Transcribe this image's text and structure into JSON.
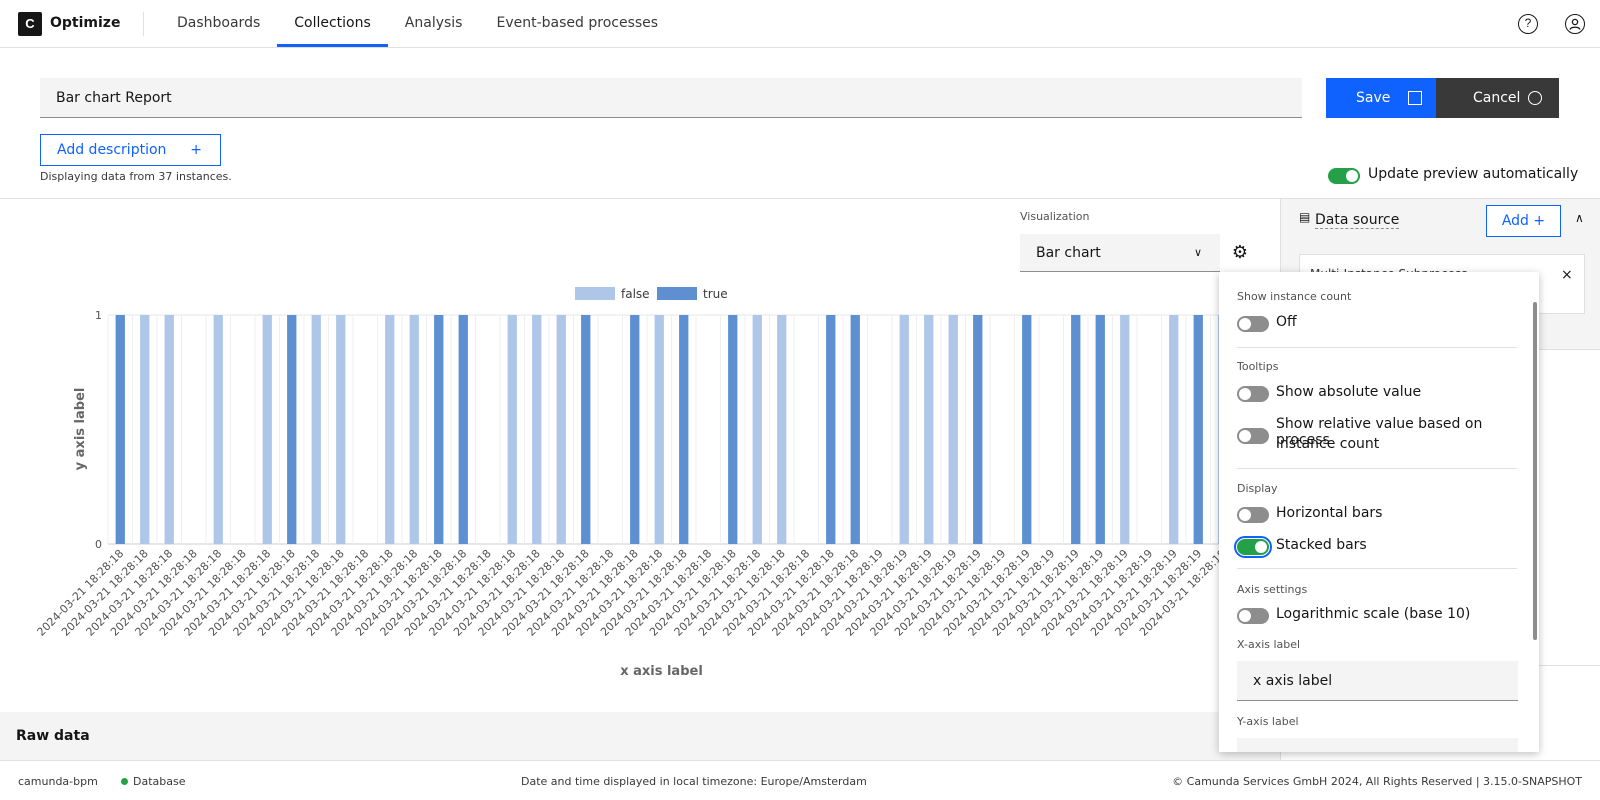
{
  "app": {
    "logo_letter": "C",
    "name": "Optimize"
  },
  "nav": {
    "tabs": [
      {
        "label": "Dashboards"
      },
      {
        "label": "Collections"
      },
      {
        "label": "Analysis"
      },
      {
        "label": "Event-based processes"
      }
    ],
    "active": "Collections",
    "help_icon": "?",
    "user_icon": "user-icon"
  },
  "report": {
    "title": "Bar chart Report",
    "save_label": "Save",
    "cancel_label": "Cancel",
    "add_description_label": "Add description",
    "add_description_plus": "+",
    "instances_text": "Displaying data from 37 instances.",
    "update_preview_label": "Update preview automatically",
    "update_preview_on": true
  },
  "visualization": {
    "label": "Visualization",
    "selected": "Bar chart",
    "chevron": "∨",
    "gear": "⚙"
  },
  "chart_data": {
    "type": "bar",
    "legend": [
      "false",
      "true"
    ],
    "colors": {
      "false": "#aec7e8",
      "true": "#5e8fd1"
    },
    "xlabel": "x axis label",
    "ylabel": "y axis label",
    "ylim": [
      0,
      1
    ],
    "yticks": [
      "0",
      "1"
    ],
    "x_tick_label": "2024-03-21 18:28:18",
    "x": [
      "2024-03-21 18:28:18",
      "2024-03-21 18:28:18",
      "2024-03-21 18:28:18",
      "2024-03-21 18:28:18",
      "2024-03-21 18:28:18",
      "2024-03-21 18:28:18",
      "2024-03-21 18:28:18",
      "2024-03-21 18:28:18",
      "2024-03-21 18:28:18",
      "2024-03-21 18:28:18",
      "2024-03-21 18:28:18",
      "2024-03-21 18:28:18",
      "2024-03-21 18:28:18",
      "2024-03-21 18:28:18",
      "2024-03-21 18:28:18",
      "2024-03-21 18:28:18",
      "2024-03-21 18:28:18",
      "2024-03-21 18:28:18",
      "2024-03-21 18:28:18",
      "2024-03-21 18:28:18",
      "2024-03-21 18:28:18",
      "2024-03-21 18:28:18",
      "2024-03-21 18:28:18",
      "2024-03-21 18:28:18",
      "2024-03-21 18:28:18",
      "2024-03-21 18:28:18",
      "2024-03-21 18:28:18",
      "2024-03-21 18:28:18",
      "2024-03-21 18:28:18",
      "2024-03-21 18:28:18",
      "2024-03-21 18:28:18",
      "2024-03-21 18:28:19",
      "2024-03-21 18:28:19",
      "2024-03-21 18:28:19",
      "2024-03-21 18:28:19",
      "2024-03-21 18:28:19",
      "2024-03-21 18:28:19",
      "2024-03-21 18:28:19",
      "2024-03-21 18:28:19",
      "2024-03-21 18:28:19",
      "2024-03-21 18:28:19",
      "2024-03-21 18:28:19",
      "2024-03-21 18:28:19",
      "2024-03-21 18:28:19",
      "2024-03-21 18:28:19",
      "2024-03-21 18:28:19"
    ],
    "series_values": [
      "true",
      "false",
      "false",
      null,
      "false",
      null,
      "false",
      "true",
      "false",
      "false",
      null,
      "false",
      "false",
      "true",
      "true",
      null,
      "false",
      "false",
      "false",
      "true",
      null,
      "true",
      "false",
      "true",
      null,
      "true",
      "false",
      "false",
      null,
      "true",
      "true",
      null,
      "false",
      "false",
      "false",
      "true",
      null,
      "true",
      null,
      "true",
      "true",
      "false",
      null,
      "false",
      "true",
      "false"
    ],
    "values_note_free": true
  },
  "popover": {
    "show_instance_count": {
      "title": "Show instance count",
      "label": "Off",
      "on": false
    },
    "tooltips": {
      "title": "Tooltips",
      "absolute": {
        "label": "Show absolute value",
        "on": false
      },
      "relative": {
        "label_line1": "Show relative value based on process",
        "label_line2": "instance count",
        "on": false
      }
    },
    "display": {
      "title": "Display",
      "horizontal": {
        "label": "Horizontal bars",
        "on": false
      },
      "stacked": {
        "label": "Stacked bars",
        "on": true
      }
    },
    "axis": {
      "title": "Axis settings",
      "log": {
        "label": "Logarithmic scale (base 10)",
        "on": false
      },
      "x_label_title": "X-axis label",
      "x_label_value": "x axis label",
      "y_label_title": "Y-axis label"
    }
  },
  "side_panel": {
    "data_source_label": "Data source",
    "add_label": "Add +",
    "card_text": "Multi-Instance Subprocess",
    "close": "×"
  },
  "raw_data_label": "Raw data",
  "footer": {
    "left": "camunda-bpm",
    "db": "Database",
    "timezone": "Date and time displayed in local timezone: Europe/Amsterdam",
    "copyright": "© Camunda Services GmbH 2024, All Rights Reserved | 3.15.0-SNAPSHOT"
  }
}
